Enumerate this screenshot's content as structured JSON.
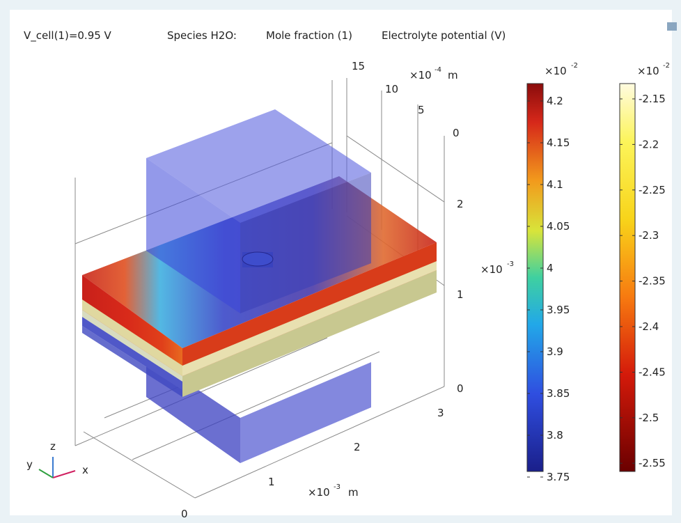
{
  "header": {
    "cell_voltage": "V_cell(1)=0.95 V",
    "species": "Species H2O:",
    "quantity": "Mole fraction (1)",
    "potential": "Electrolyte potential (V)"
  },
  "axes": {
    "y_axis": {
      "ticks": [
        "15",
        "10",
        "5",
        "0"
      ],
      "scale": "×10",
      "exponent": "-4",
      "unit": "m"
    },
    "z_axis": {
      "ticks": [
        "2",
        "1",
        "0"
      ],
      "scale": "×10",
      "exponent": "-3"
    },
    "x_axis": {
      "ticks": [
        "0",
        "1",
        "2",
        "3"
      ],
      "scale": "×10",
      "exponent": "-3",
      "unit": "m"
    },
    "triad": {
      "z": "z",
      "y": "y",
      "x": "x"
    }
  },
  "colorbars": [
    {
      "scale": "×10",
      "exponent": "-2",
      "ticks": [
        "4.2",
        "4.15",
        "4.1",
        "4.05",
        "4",
        "3.95",
        "3.9",
        "3.85",
        "3.8",
        "3.75"
      ]
    },
    {
      "scale": "×10",
      "exponent": "-2",
      "ticks": [
        "-2.15",
        "-2.2",
        "-2.25",
        "-2.3",
        "-2.35",
        "-2.4",
        "-2.45",
        "-2.5",
        "-2.55"
      ]
    }
  ]
}
